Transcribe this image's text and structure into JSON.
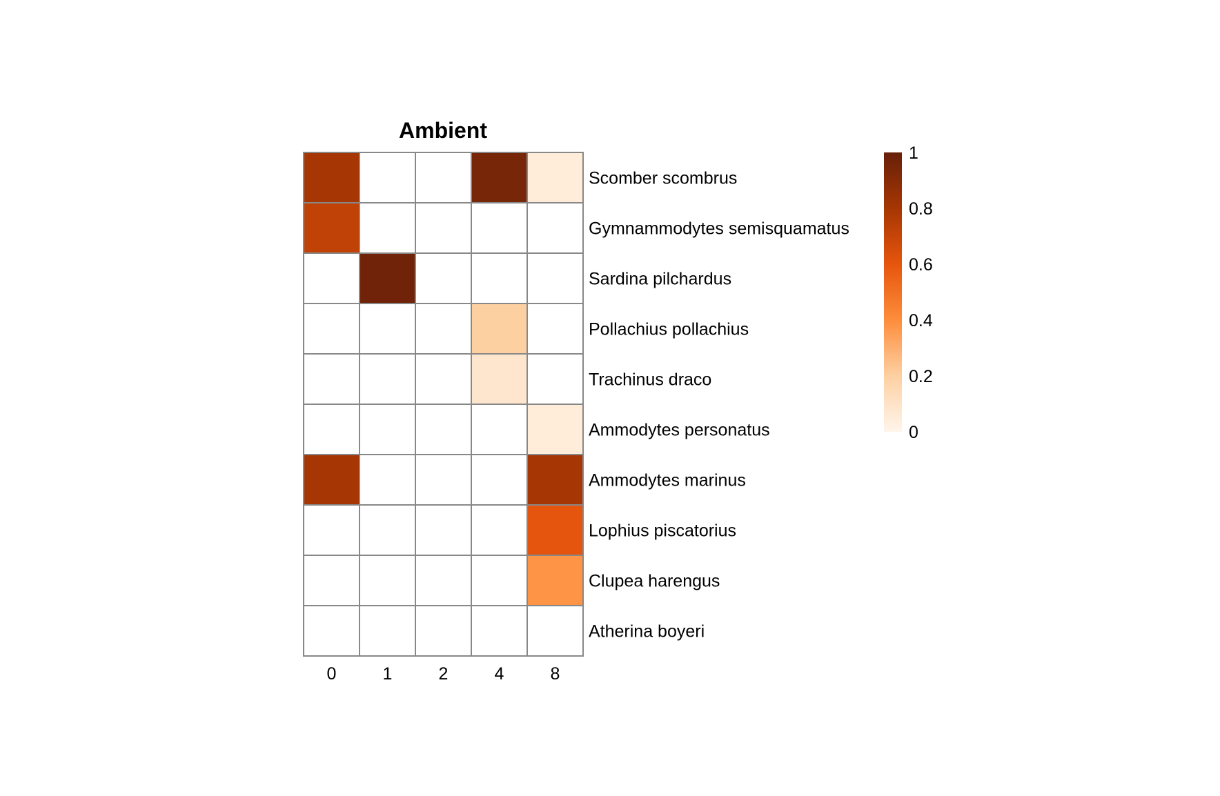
{
  "chart_data": {
    "type": "heatmap",
    "title": "Ambient",
    "x_categories": [
      "0",
      "1",
      "2",
      "4",
      "8"
    ],
    "y_categories": [
      "Scomber scombrus",
      "Gymnammodytes semisquamatus",
      "Sardina pilchardus",
      "Pollachius pollachius",
      "Trachinus draco",
      "Ammodytes personatus",
      "Ammodytes marinus",
      "Lophius piscatorius",
      "Clupea harengus",
      "Atherina boyeri"
    ],
    "values": [
      [
        0.8,
        0.0,
        0.0,
        0.95,
        0.05
      ],
      [
        0.72,
        0.0,
        0.0,
        0.0,
        0.0
      ],
      [
        0.0,
        0.97,
        0.0,
        0.0,
        0.0
      ],
      [
        0.0,
        0.0,
        0.0,
        0.2,
        0.0
      ],
      [
        0.0,
        0.0,
        0.0,
        0.08,
        0.0
      ],
      [
        0.0,
        0.0,
        0.0,
        0.0,
        0.05
      ],
      [
        0.8,
        0.0,
        0.0,
        0.0,
        0.8
      ],
      [
        0.0,
        0.0,
        0.0,
        0.0,
        0.6
      ],
      [
        0.0,
        0.0,
        0.0,
        0.0,
        0.38
      ],
      [
        0.0,
        0.0,
        0.0,
        0.0,
        0.0
      ]
    ],
    "colorbar": {
      "range": [
        0,
        1
      ],
      "ticks": [
        "0",
        "0.2",
        "0.4",
        "0.6",
        "0.8",
        "1"
      ],
      "colors": [
        "#fff5eb",
        "#fdd0a2",
        "#fd8d3c",
        "#e6550d",
        "#a63603",
        "#67200a"
      ]
    },
    "grid_color": "#888888"
  }
}
